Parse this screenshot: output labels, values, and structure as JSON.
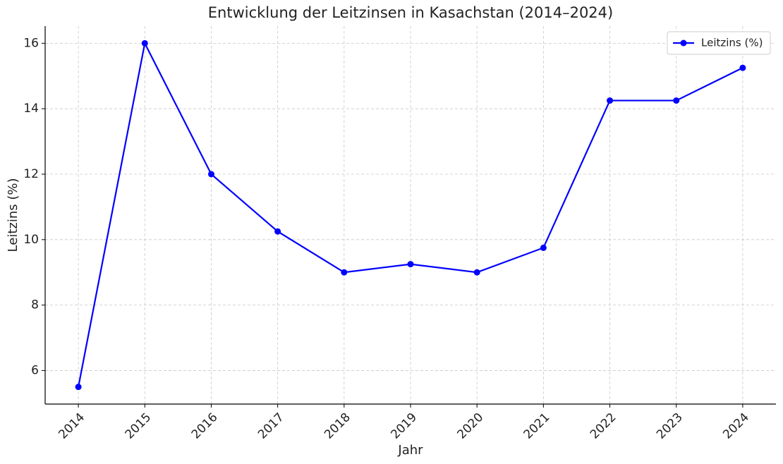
{
  "chart_data": {
    "type": "line",
    "title": "Entwicklung der Leitzinsen in Kasachstan (2014–2024)",
    "xlabel": "Jahr",
    "ylabel": "Leitzins (%)",
    "x": [
      2014,
      2015,
      2016,
      2017,
      2018,
      2019,
      2020,
      2021,
      2022,
      2023,
      2024
    ],
    "series": [
      {
        "name": "Leitzins (%)",
        "color": "#0000ff",
        "values": [
          5.5,
          16,
          12,
          10.25,
          9,
          9.25,
          9,
          9.75,
          14.25,
          14.25,
          15.25
        ]
      }
    ],
    "xlim": [
      2013.5,
      2024.5
    ],
    "xticks": [
      2014,
      2015,
      2016,
      2017,
      2018,
      2019,
      2020,
      2021,
      2022,
      2023,
      2024
    ],
    "ylim": [
      4.975,
      16.525
    ],
    "yticks": [
      6,
      8,
      10,
      12,
      14,
      16
    ],
    "grid": true,
    "legend": "upper right"
  }
}
